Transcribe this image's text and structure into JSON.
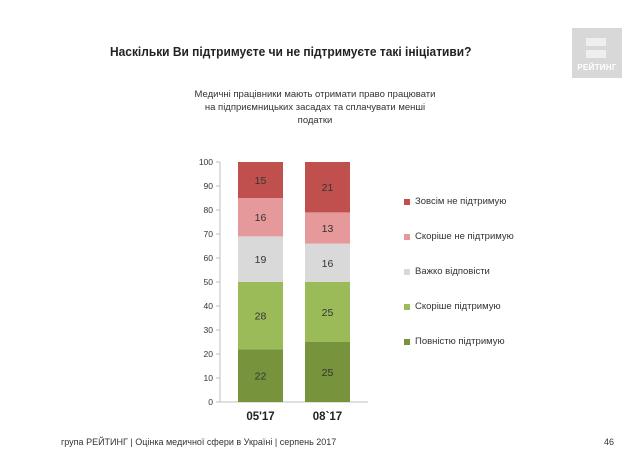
{
  "title": "Наскільки Ви підтримуєте чи не підтримуєте такі ініціативи?",
  "logo_text": "РЕЙТИНГ",
  "subtitle": "Медичні працівники мають отримати право працювати на підприємницьких засадах та сплачувати менші податки",
  "chart_data": {
    "type": "bar",
    "stacked": true,
    "categories": [
      "05'17",
      "08`17"
    ],
    "ylim": [
      0,
      100
    ],
    "yticks": [
      0,
      10,
      20,
      30,
      40,
      50,
      60,
      70,
      80,
      90,
      100
    ],
    "grid": false,
    "legend_position": "right",
    "series": [
      {
        "name": "Повністю підтримую",
        "values": [
          22,
          25
        ],
        "color": "#77933c"
      },
      {
        "name": "Скоріше підтримую",
        "values": [
          28,
          25
        ],
        "color": "#9bbb59"
      },
      {
        "name": "Важко відповісти",
        "values": [
          19,
          16
        ],
        "color": "#d9d9d9"
      },
      {
        "name": "Скоріше не підтримую",
        "values": [
          16,
          13
        ],
        "color": "#e6999a"
      },
      {
        "name": "Зовсім не підтримую",
        "values": [
          15,
          21
        ],
        "color": "#c0504d"
      }
    ]
  },
  "footer": "група РЕЙТИНГ  |  Оцінка медичної сфери в Україні  |  серпень 2017",
  "page_number": "46"
}
